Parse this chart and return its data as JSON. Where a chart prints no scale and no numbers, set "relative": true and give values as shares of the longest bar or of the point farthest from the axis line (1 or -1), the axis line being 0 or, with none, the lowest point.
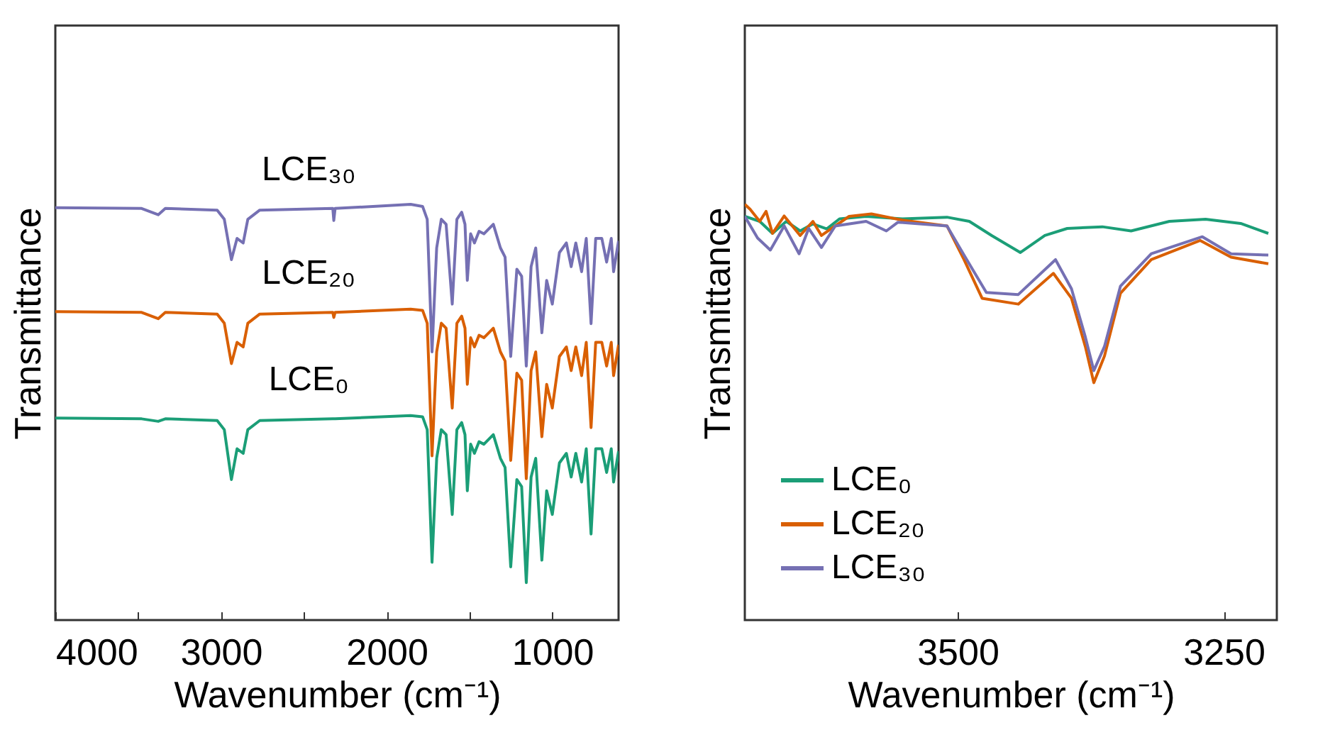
{
  "chart_data": [
    {
      "type": "line",
      "relative": true,
      "xlabel": "Wavenumber (cm⁻¹)",
      "ylabel": "Transmittance",
      "xlim": [
        4000,
        600
      ],
      "xticks": [
        4000,
        {
          "value": 3500,
          "label": null
        },
        3000,
        {
          "value": 2500,
          "label": null
        },
        2000,
        {
          "value": 1500,
          "label": null
        },
        1000
      ],
      "x": [
        4000,
        3479,
        3379,
        3336,
        3023,
        2980,
        2937,
        2903,
        2866,
        2838,
        2766,
        2325,
        2319,
        2311,
        1855,
        1783,
        1755,
        1726,
        1698,
        1670,
        1641,
        1604,
        1576,
        1547,
        1527,
        1513,
        1493,
        1470,
        1442,
        1413,
        1356,
        1313,
        1285,
        1251,
        1214,
        1185,
        1157,
        1128,
        1100,
        1063,
        1034,
        1000,
        957,
        915,
        886,
        858,
        823,
        795,
        766,
        738,
        701,
        672,
        644,
        630,
        600
      ],
      "series": [
        {
          "name": "LCE₃₀",
          "color": "#7570b3",
          "values": [
            0.992,
            0.99,
            0.975,
            0.99,
            0.986,
            0.964,
            0.867,
            0.918,
            0.907,
            0.964,
            0.986,
            0.99,
            0.961,
            0.99,
            1.0,
            0.995,
            0.964,
            0.645,
            0.895,
            0.964,
            0.952,
            0.76,
            0.964,
            0.981,
            0.952,
            0.817,
            0.929,
            0.907,
            0.935,
            0.929,
            0.952,
            0.895,
            0.873,
            0.634,
            0.844,
            0.827,
            0.611,
            0.85,
            0.895,
            0.691,
            0.817,
            0.76,
            0.884,
            0.907,
            0.85,
            0.907,
            0.838,
            0.918,
            0.713,
            0.918,
            0.918,
            0.861,
            0.918,
            0.838,
            0.912
          ]
        },
        {
          "name": "LCE₂₀",
          "color": "#d95f02",
          "values": [
            0.742,
            0.74,
            0.725,
            0.74,
            0.736,
            0.714,
            0.617,
            0.668,
            0.657,
            0.714,
            0.736,
            0.74,
            0.728,
            0.74,
            0.748,
            0.745,
            0.714,
            0.395,
            0.645,
            0.714,
            0.702,
            0.51,
            0.714,
            0.731,
            0.702,
            0.567,
            0.679,
            0.657,
            0.685,
            0.679,
            0.702,
            0.645,
            0.623,
            0.384,
            0.594,
            0.577,
            0.34,
            0.6,
            0.645,
            0.441,
            0.567,
            0.51,
            0.634,
            0.657,
            0.6,
            0.657,
            0.588,
            0.668,
            0.463,
            0.668,
            0.668,
            0.611,
            0.668,
            0.588,
            0.662
          ]
        },
        {
          "name": "LCE₀",
          "color": "#1b9e77",
          "values": [
            0.486,
            0.484,
            0.478,
            0.484,
            0.48,
            0.458,
            0.338,
            0.412,
            0.401,
            0.458,
            0.48,
            0.484,
            0.484,
            0.484,
            0.492,
            0.489,
            0.458,
            0.139,
            0.389,
            0.458,
            0.446,
            0.254,
            0.458,
            0.475,
            0.446,
            0.311,
            0.423,
            0.401,
            0.429,
            0.423,
            0.446,
            0.389,
            0.367,
            0.128,
            0.338,
            0.321,
            0.09,
            0.344,
            0.389,
            0.144,
            0.311,
            0.254,
            0.378,
            0.401,
            0.344,
            0.401,
            0.332,
            0.412,
            0.207,
            0.412,
            0.412,
            0.355,
            0.412,
            0.332,
            0.406
          ]
        }
      ]
    },
    {
      "type": "line",
      "relative": true,
      "xlabel": "Wavenumber (cm⁻¹)",
      "ylabel": "Transmittance",
      "legend": "bottom left",
      "xlim": [
        3700,
        3200
      ],
      "xticks": [
        3500,
        3250
      ],
      "series": [
        {
          "name": "LCE₀",
          "color": "#1b9e77",
          "x": [
            3700,
            3686,
            3674,
            3661,
            3648,
            3636,
            3623,
            3611,
            3586,
            3552,
            3510,
            3489,
            3468,
            3441,
            3418,
            3397,
            3364,
            3337,
            3301,
            3267,
            3234,
            3208
          ],
          "values": [
            0.971,
            0.959,
            0.93,
            0.959,
            0.936,
            0.953,
            0.941,
            0.965,
            0.971,
            0.965,
            0.969,
            0.959,
            0.925,
            0.884,
            0.925,
            0.942,
            0.946,
            0.936,
            0.959,
            0.964,
            0.954,
            0.93
          ]
        },
        {
          "name": "LCE₂₀",
          "color": "#d95f02",
          "x": [
            3700,
            3695,
            3686,
            3680,
            3674,
            3663,
            3648,
            3636,
            3628,
            3602,
            3581,
            3552,
            3510,
            3494,
            3477,
            3443,
            3410,
            3393,
            3380,
            3372,
            3362,
            3347,
            3318,
            3272,
            3243,
            3208
          ],
          "values": [
            1.0,
            0.988,
            0.959,
            0.983,
            0.93,
            0.972,
            0.925,
            0.959,
            0.925,
            0.971,
            0.977,
            0.962,
            0.948,
            0.867,
            0.774,
            0.76,
            0.834,
            0.774,
            0.658,
            0.571,
            0.635,
            0.786,
            0.867,
            0.913,
            0.873,
            0.857
          ]
        },
        {
          "name": "LCE₃₀",
          "color": "#7570b3",
          "x": [
            3700,
            3688,
            3676,
            3663,
            3649,
            3640,
            3628,
            3615,
            3586,
            3567,
            3556,
            3510,
            3494,
            3473,
            3443,
            3408,
            3393,
            3380,
            3372,
            3362,
            3347,
            3318,
            3270,
            3243,
            3208
          ],
          "values": [
            0.971,
            0.919,
            0.89,
            0.948,
            0.881,
            0.942,
            0.896,
            0.948,
            0.959,
            0.936,
            0.957,
            0.948,
            0.878,
            0.788,
            0.783,
            0.867,
            0.797,
            0.681,
            0.6,
            0.658,
            0.803,
            0.881,
            0.922,
            0.881,
            0.878
          ]
        }
      ]
    }
  ]
}
